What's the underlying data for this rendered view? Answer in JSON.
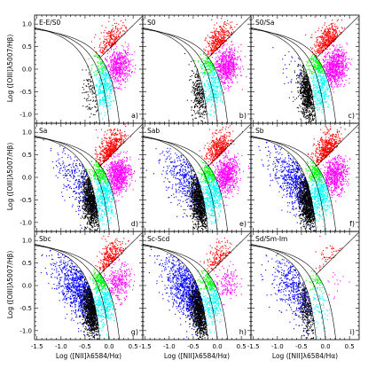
{
  "figure": {
    "ylabel": "Log ([OIII]λ5007/Hβ)",
    "xlabel": "Log ([NII]λ6584/Hα)",
    "xticks": [
      "-1.5",
      "-1.0",
      "-0.5",
      "0.0",
      "0.5"
    ],
    "yticks": [
      "1.0",
      "0.5",
      "0.0",
      "-0.5",
      "-1.0"
    ]
  },
  "colors": {
    "seyfert": "#ff0000",
    "composite": "#00ff00",
    "liner": "#ff00ff",
    "starforming": "#0000ff",
    "transition": "#00ffff",
    "core": "#000000"
  },
  "chart_data": [
    {
      "type": "scatter",
      "title": "E-E/S0",
      "tag": "a)",
      "xlim": [
        -1.55,
        0.7
      ],
      "ylim": [
        -1.2,
        1.2
      ],
      "xlabel": "",
      "ylabel": "Log ([OIII]λ5007/Hβ)",
      "density": {
        "seyfert": 0.45,
        "composite": 0.3,
        "liner": 0.7,
        "starforming": 0.0,
        "transition": 0.7,
        "core": 0.1
      }
    },
    {
      "type": "scatter",
      "title": "S0",
      "tag": "b)",
      "xlim": [
        -1.55,
        0.7
      ],
      "ylim": [
        -1.2,
        1.2
      ],
      "xlabel": "",
      "ylabel": "",
      "density": {
        "seyfert": 0.7,
        "composite": 0.5,
        "liner": 0.9,
        "starforming": 0.0,
        "transition": 0.6,
        "core": 0.3
      }
    },
    {
      "type": "scatter",
      "title": "S0/Sa",
      "tag": "c)",
      "xlim": [
        -1.55,
        0.7
      ],
      "ylim": [
        -1.2,
        1.2
      ],
      "xlabel": "",
      "ylabel": "",
      "density": {
        "seyfert": 0.85,
        "composite": 0.7,
        "liner": 1.0,
        "starforming": 0.05,
        "transition": 0.7,
        "core": 0.8
      }
    },
    {
      "type": "scatter",
      "title": "Sa",
      "tag": "d)",
      "xlim": [
        -1.55,
        0.7
      ],
      "ylim": [
        -1.2,
        1.2
      ],
      "xlabel": "",
      "ylabel": "Log ([OIII]λ5007/Hβ)",
      "density": {
        "seyfert": 1.0,
        "composite": 0.9,
        "liner": 1.0,
        "starforming": 0.35,
        "transition": 0.9,
        "core": 1.0
      }
    },
    {
      "type": "scatter",
      "title": "Sab",
      "tag": "e)",
      "xlim": [
        -1.55,
        0.7
      ],
      "ylim": [
        -1.2,
        1.2
      ],
      "xlabel": "",
      "ylabel": "",
      "density": {
        "seyfert": 0.85,
        "composite": 0.9,
        "liner": 0.9,
        "starforming": 0.5,
        "transition": 0.9,
        "core": 1.0
      }
    },
    {
      "type": "scatter",
      "title": "Sb",
      "tag": "f)",
      "xlim": [
        -1.55,
        0.7
      ],
      "ylim": [
        -1.2,
        1.2
      ],
      "xlabel": "",
      "ylabel": "",
      "density": {
        "seyfert": 0.9,
        "composite": 0.9,
        "liner": 0.8,
        "starforming": 0.7,
        "transition": 0.9,
        "core": 1.0
      }
    },
    {
      "type": "scatter",
      "title": "Sbc",
      "tag": "g)",
      "xlim": [
        -1.55,
        0.7
      ],
      "ylim": [
        -1.2,
        1.2
      ],
      "xlabel": "Log ([NII]λ6584/Hα)",
      "ylabel": "Log ([OIII]λ5007/Hβ)",
      "density": {
        "seyfert": 0.6,
        "composite": 0.9,
        "liner": 0.4,
        "starforming": 1.0,
        "transition": 0.8,
        "core": 1.0
      }
    },
    {
      "type": "scatter",
      "title": "Sc-Scd",
      "tag": "h)",
      "xlim": [
        -1.55,
        0.7
      ],
      "ylim": [
        -1.2,
        1.2
      ],
      "xlabel": "Log ([NII]λ6584/Hα)",
      "ylabel": "",
      "density": {
        "seyfert": 0.35,
        "composite": 0.7,
        "liner": 0.2,
        "starforming": 1.0,
        "transition": 0.6,
        "core": 1.0
      }
    },
    {
      "type": "scatter",
      "title": "Sd/Sm-Im",
      "tag": "i)",
      "xlim": [
        -1.55,
        0.7
      ],
      "ylim": [
        -1.2,
        1.2
      ],
      "xlabel": "Log ([NII]λ6584/Hα)",
      "ylabel": "",
      "density": {
        "seyfert": 0.1,
        "composite": 0.2,
        "liner": 0.02,
        "starforming": 0.5,
        "transition": 0.15,
        "core": 0.3
      }
    }
  ]
}
